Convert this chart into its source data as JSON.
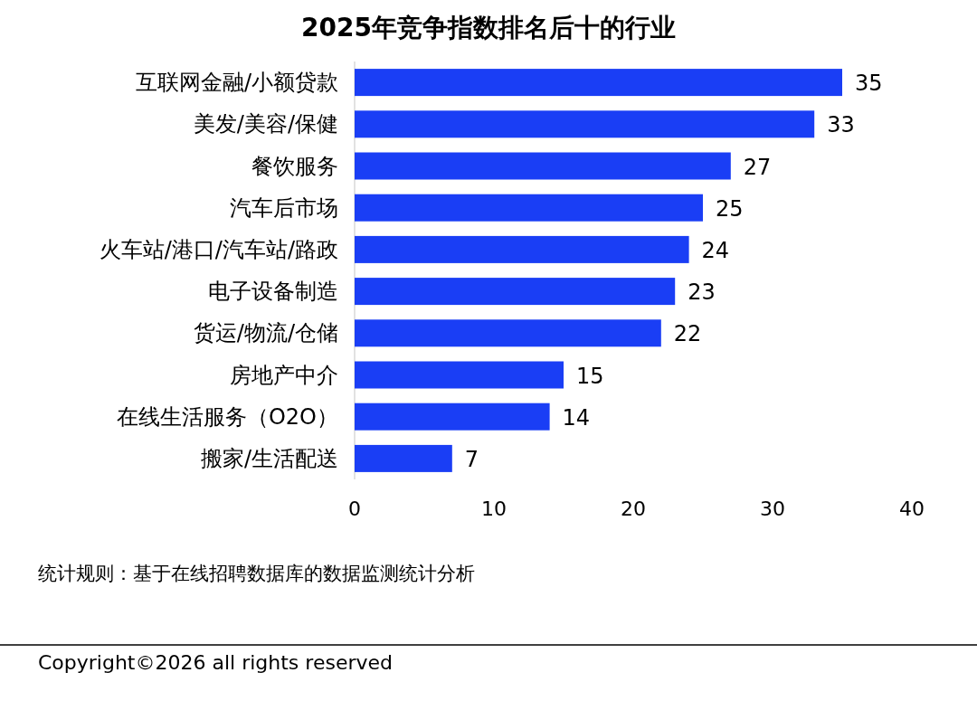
{
  "chart_data": {
    "type": "bar",
    "title": "2025年竞争指数排名后十的行业",
    "orientation": "horizontal",
    "categories": [
      "互联网金融/小额贷款",
      "美发/美容/保健",
      "餐饮服务",
      "汽车后市场",
      "火车站/港口/汽车站/路政",
      "电子设备制造",
      "货运/物流/仓储",
      "房地产中介",
      "在线生活服务（O2O）",
      "搬家/生活配送"
    ],
    "values": [
      35,
      33,
      27,
      25,
      24,
      23,
      22,
      15,
      14,
      7
    ],
    "color": "#1a3ef5",
    "xlim": [
      0,
      40
    ],
    "xticks": [
      0,
      10,
      20,
      30,
      40
    ],
    "data_labels": true,
    "annotations": [
      "统计规则：基于在线招聘数据库的数据监测统计分析",
      "Copyright©2026 all rights reserved"
    ]
  }
}
